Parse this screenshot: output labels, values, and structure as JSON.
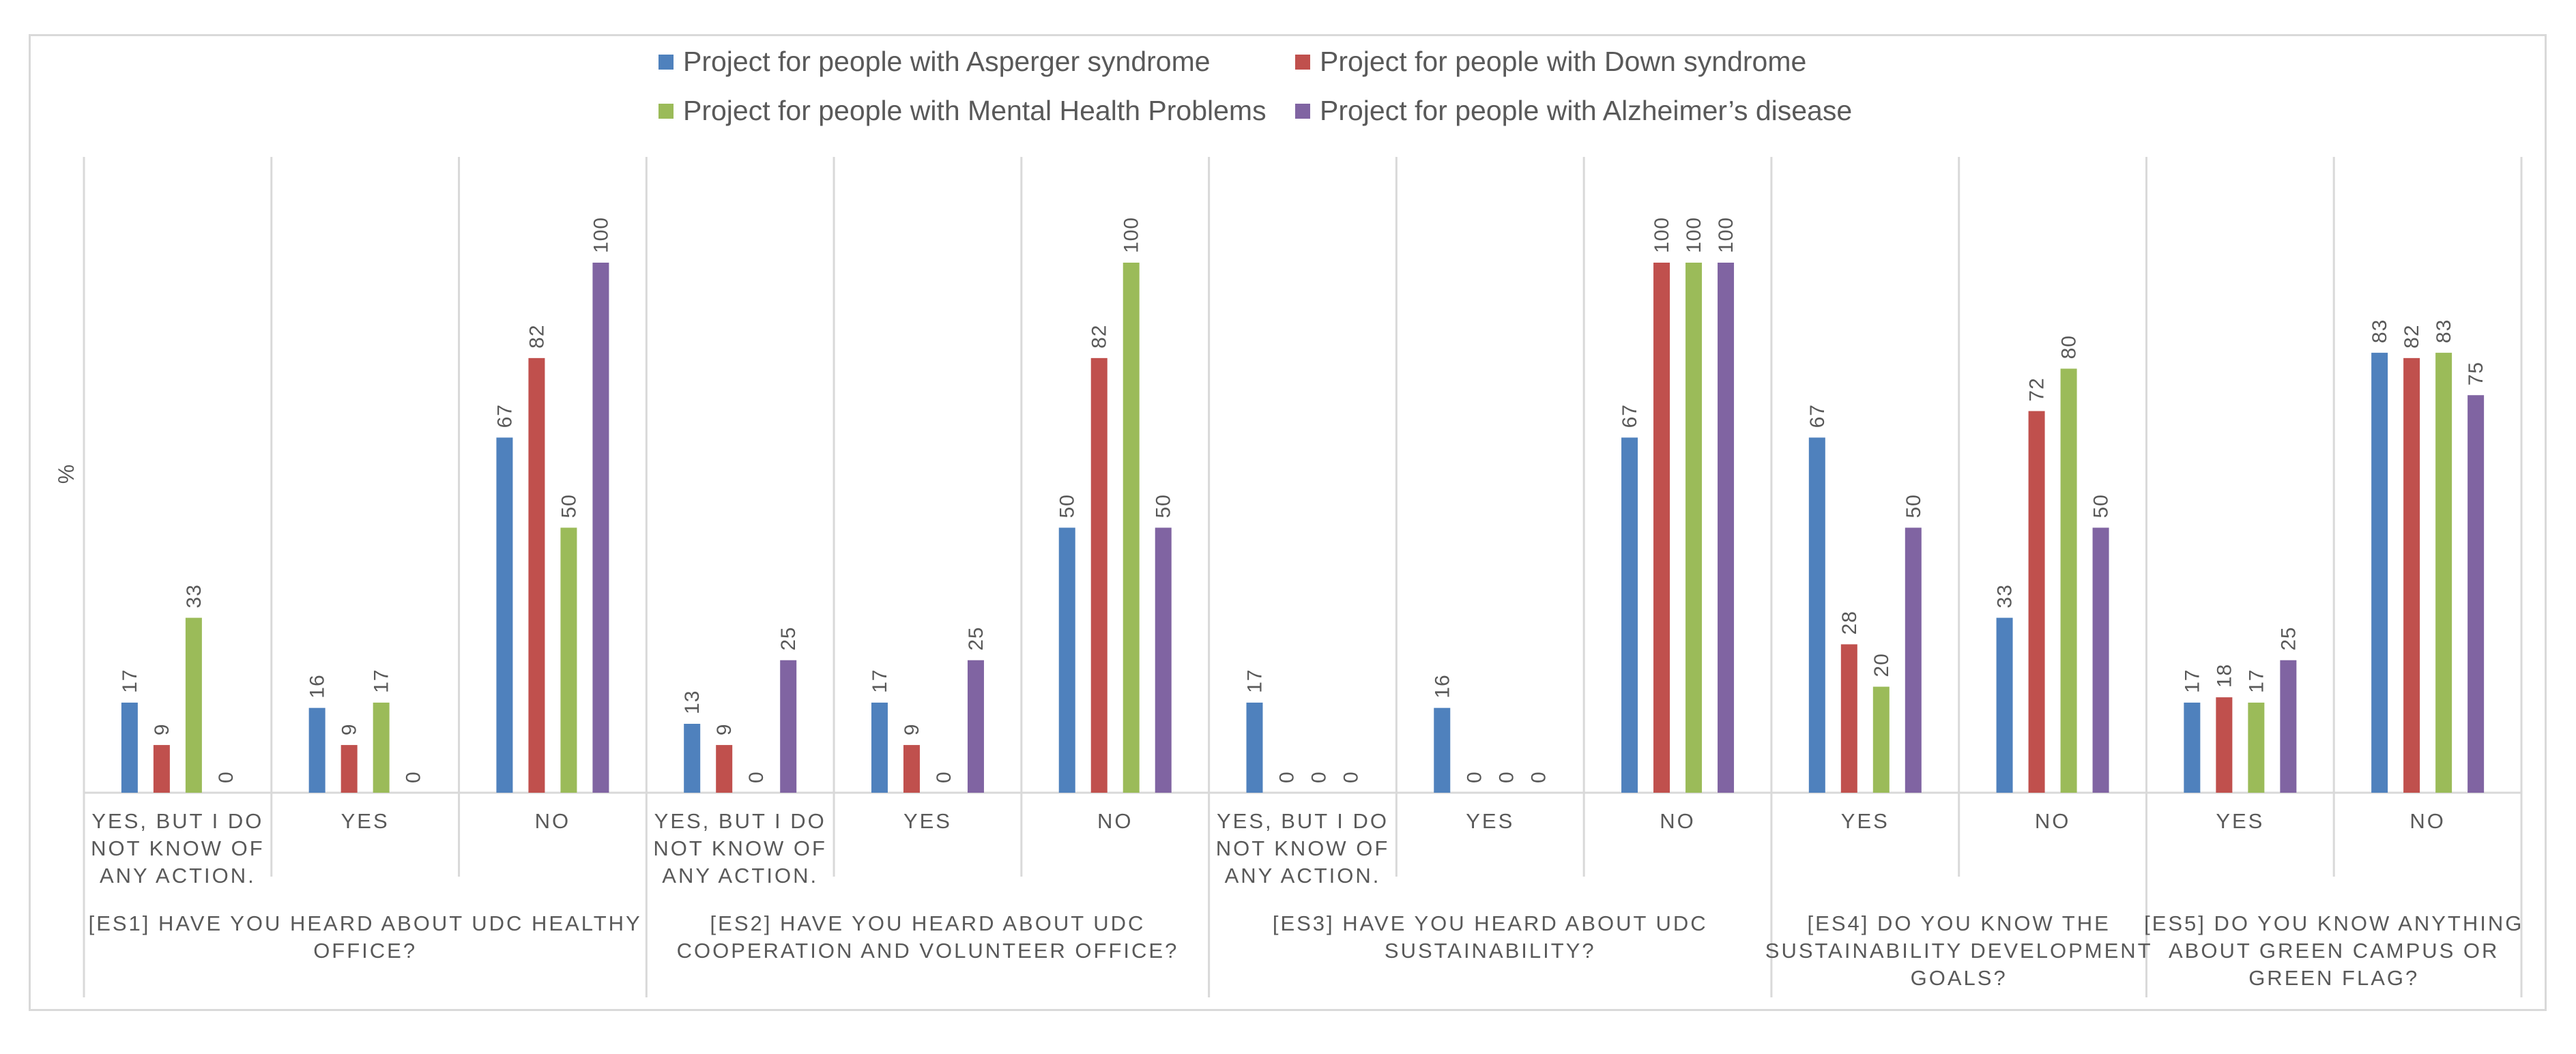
{
  "chart_data": {
    "type": "bar",
    "ylabel": "%",
    "ylim": [
      0,
      120
    ],
    "legend_position": "top",
    "grid": false,
    "series": [
      {
        "name": "Project for people with Asperger syndrome",
        "color": "#4f81bd"
      },
      {
        "name": "Project for people with Down syndrome",
        "color": "#c0504d"
      },
      {
        "name": "Project for people with Mental Health Problems",
        "color": "#9bbb59"
      },
      {
        "name": "Project for people with Alzheimer’s disease",
        "color": "#8064a2"
      }
    ],
    "groups": [
      {
        "label": [
          "[ES1] HAVE YOU HEARD ABOUT UDC HEALTHY",
          "OFFICE?"
        ],
        "categories": [
          {
            "label": [
              "YES, BUT I DO",
              "NOT KNOW OF",
              "ANY ACTION."
            ],
            "values": [
              17,
              9,
              33,
              0
            ]
          },
          {
            "label": [
              "YES"
            ],
            "values": [
              16,
              9,
              17,
              0
            ]
          },
          {
            "label": [
              "NO"
            ],
            "values": [
              67,
              82,
              50,
              100
            ]
          }
        ]
      },
      {
        "label": [
          "[ES2] HAVE YOU HEARD ABOUT UDC",
          "COOPERATION AND VOLUNTEER OFFICE?"
        ],
        "categories": [
          {
            "label": [
              "YES, BUT I DO",
              "NOT KNOW OF",
              "ANY ACTION."
            ],
            "values": [
              13,
              9,
              0,
              25
            ]
          },
          {
            "label": [
              "YES"
            ],
            "values": [
              17,
              9,
              0,
              25
            ]
          },
          {
            "label": [
              "NO"
            ],
            "values": [
              50,
              82,
              100,
              50
            ]
          }
        ]
      },
      {
        "label": [
          "[ES3] HAVE YOU HEARD ABOUT UDC",
          "SUSTAINABILITY?"
        ],
        "categories": [
          {
            "label": [
              "YES, BUT I DO",
              "NOT KNOW OF",
              "ANY ACTION."
            ],
            "values": [
              17,
              0,
              0,
              0
            ]
          },
          {
            "label": [
              "YES"
            ],
            "values": [
              16,
              0,
              0,
              0
            ]
          },
          {
            "label": [
              "NO"
            ],
            "values": [
              67,
              100,
              100,
              100
            ]
          }
        ]
      },
      {
        "label": [
          "[ES4] DO YOU KNOW THE",
          "SUSTAINABILITY DEVELOPMENT",
          "GOALS?"
        ],
        "categories": [
          {
            "label": [
              "YES"
            ],
            "values": [
              67,
              28,
              20,
              50
            ]
          },
          {
            "label": [
              "NO"
            ],
            "values": [
              33,
              72,
              80,
              50
            ]
          }
        ]
      },
      {
        "label": [
          "[ES5] DO YOU KNOW ANYTHING",
          "ABOUT GREEN CAMPUS OR",
          "GREEN FLAG?"
        ],
        "categories": [
          {
            "label": [
              "YES"
            ],
            "values": [
              17,
              18,
              17,
              25
            ]
          },
          {
            "label": [
              "NO"
            ],
            "values": [
              83,
              82,
              83,
              75
            ]
          }
        ]
      }
    ]
  }
}
